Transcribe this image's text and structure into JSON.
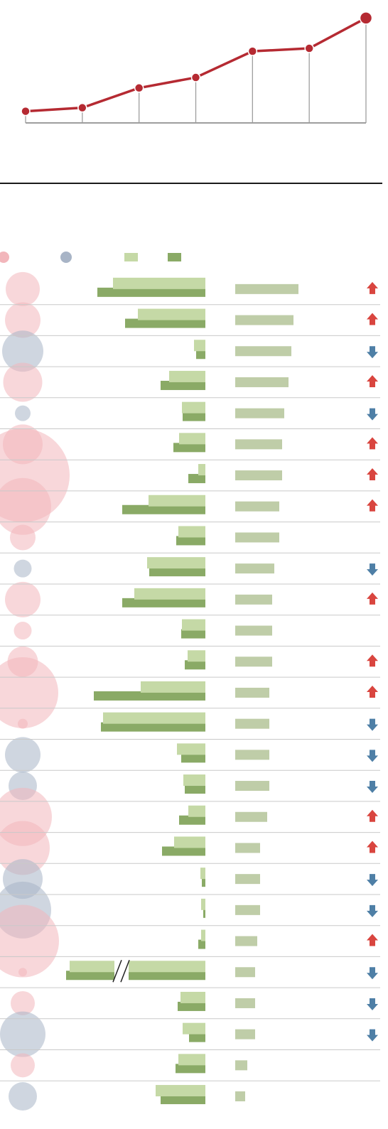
{
  "chart_data": [
    {
      "type": "line",
      "x": [
        1,
        2,
        3,
        4,
        5,
        6,
        7
      ],
      "values": [
        2.0,
        2.6,
        6.0,
        7.8,
        12.3,
        12.8,
        18.0
      ],
      "ylim": [
        0,
        20
      ],
      "grid": false,
      "colors": {
        "line": "#b52a32",
        "axis": "#9e9e9e"
      }
    },
    {
      "type": "table",
      "rows": [
        {
          "bubble": 48,
          "bubble_color": "red",
          "bar_a": 130,
          "bar_b": 152,
          "bar_c": 89,
          "arrow": "up"
        },
        {
          "bubble": 50,
          "bubble_color": "red",
          "bar_a": 95,
          "bar_b": 113,
          "bar_c": 82,
          "arrow": "up"
        },
        {
          "bubble": 58,
          "bubble_color": "blue",
          "bar_a": 16,
          "bar_b": 13,
          "bar_c": 79,
          "arrow": "down"
        },
        {
          "bubble": 55,
          "bubble_color": "red",
          "bar_a": 51,
          "bar_b": 63,
          "bar_c": 75,
          "arrow": "up"
        },
        {
          "bubble": 22,
          "bubble_color": "blue",
          "bar_a": 33,
          "bar_b": 32,
          "bar_c": 69,
          "arrow": "down"
        },
        {
          "bubble": 56,
          "bubble_color": "red",
          "bar_a": 37,
          "bar_b": 45,
          "bar_c": 66,
          "arrow": "up"
        },
        {
          "bubble": 132,
          "bubble_color": "red",
          "bar_a": 10,
          "bar_b": 24,
          "bar_c": 66,
          "arrow": "up"
        },
        {
          "bubble": 80,
          "bubble_color": "red",
          "bar_a": 80,
          "bar_b": 117,
          "bar_c": 62,
          "arrow": "up"
        },
        {
          "bubble": 36,
          "bubble_color": "red",
          "bar_a": 38,
          "bar_b": 41,
          "bar_c": 62,
          "arrow": "none"
        },
        {
          "bubble": 25,
          "bubble_color": "blue",
          "bar_a": 82,
          "bar_b": 79,
          "bar_c": 55,
          "arrow": "down"
        },
        {
          "bubble": 50,
          "bubble_color": "red",
          "bar_a": 100,
          "bar_b": 117,
          "bar_c": 52,
          "arrow": "up"
        },
        {
          "bubble": 25,
          "bubble_color": "red",
          "bar_a": 33,
          "bar_b": 34,
          "bar_c": 52,
          "arrow": "none"
        },
        {
          "bubble": 43,
          "bubble_color": "red",
          "bar_a": 25,
          "bar_b": 29,
          "bar_c": 52,
          "arrow": "up"
        },
        {
          "bubble": 100,
          "bubble_color": "red",
          "bar_a": 91,
          "bar_b": 157,
          "bar_c": 48,
          "arrow": "up"
        },
        {
          "bubble": 14,
          "bubble_color": "red",
          "bar_a": 144,
          "bar_b": 147,
          "bar_c": 48,
          "arrow": "down"
        },
        {
          "bubble": 50,
          "bubble_color": "blue",
          "bar_a": 40,
          "bar_b": 34,
          "bar_c": 48,
          "arrow": "down"
        },
        {
          "bubble": 40,
          "bubble_color": "blue",
          "bar_a": 31,
          "bar_b": 29,
          "bar_c": 48,
          "arrow": "down"
        },
        {
          "bubble": 82,
          "bubble_color": "red",
          "bar_a": 24,
          "bar_b": 37,
          "bar_c": 45,
          "arrow": "up"
        },
        {
          "bubble": 76,
          "bubble_color": "red",
          "bar_a": 44,
          "bar_b": 61,
          "bar_c": 35,
          "arrow": "up"
        },
        {
          "bubble": 56,
          "bubble_color": "blue",
          "bar_a": 7,
          "bar_b": 5,
          "bar_c": 35,
          "arrow": "down"
        },
        {
          "bubble": 80,
          "bubble_color": "blue",
          "bar_a": 6,
          "bar_b": 3,
          "bar_c": 35,
          "arrow": "down"
        },
        {
          "bubble": 102,
          "bubble_color": "red",
          "bar_a": 6,
          "bar_b": 10,
          "bar_c": 31,
          "arrow": "up"
        },
        {
          "bubble": 12,
          "bubble_color": "red",
          "bar_a": 191,
          "bar_b": 196,
          "bar_c": 28,
          "arrow": "down",
          "bar_break": true
        },
        {
          "bubble": 34,
          "bubble_color": "red",
          "bar_a": 35,
          "bar_b": 39,
          "bar_c": 28,
          "arrow": "down"
        },
        {
          "bubble": 64,
          "bubble_color": "blue",
          "bar_a": 32,
          "bar_b": 23,
          "bar_c": 28,
          "arrow": "down"
        },
        {
          "bubble": 34,
          "bubble_color": "red",
          "bar_a": 38,
          "bar_b": 42,
          "bar_c": 17,
          "arrow": "none"
        },
        {
          "bubble": 40,
          "bubble_color": "blue",
          "bar_a": 70,
          "bar_b": 63,
          "bar_c": 14,
          "arrow": "none"
        }
      ],
      "legend": {
        "swatches": [
          "red-bubble",
          "blue-bubble",
          "light-bar",
          "dark-bar"
        ]
      },
      "colors": {
        "bubble_red": "#f2b6bb",
        "bubble_blue": "#a8b4c6",
        "bar_light": "#c5d9a6",
        "bar_dark": "#8aaa66",
        "bar_gray": "#bfcda8",
        "arrow_up": "#d9453f",
        "arrow_down": "#4e7fa6",
        "row_line": "#c9c9c9"
      }
    }
  ]
}
